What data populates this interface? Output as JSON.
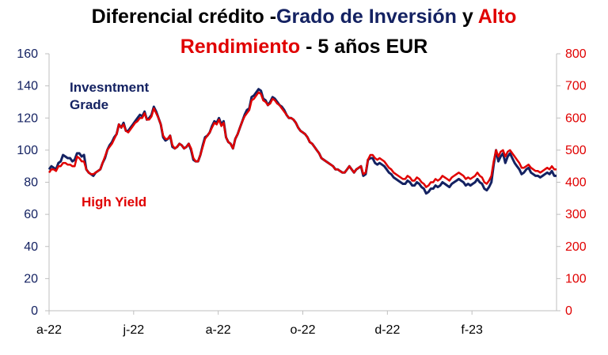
{
  "chart_data": {
    "type": "line",
    "title": {
      "part1": "Diferencial crédito -",
      "part2": "Grado de Inversión",
      "part3": " y ",
      "part4": "Alto",
      "part5": "Rendimiento",
      "part6": " - 5 años EUR"
    },
    "label_ig_line1": "Invesntment",
    "label_ig_line2": "Grade",
    "label_hy": "High Yield",
    "colors": {
      "investment_grade": "#142262",
      "high_yield": "#e00000",
      "axis": "#bfbfbf"
    },
    "x_ticks": [
      "a-22",
      "j-22",
      "a-22",
      "o-22",
      "d-22",
      "f-23"
    ],
    "y_left": {
      "min": 0,
      "max": 160,
      "ticks": [
        0,
        20,
        40,
        60,
        80,
        100,
        120,
        140,
        160
      ]
    },
    "y_right": {
      "min": 0,
      "max": 800,
      "ticks": [
        0,
        100,
        200,
        300,
        400,
        500,
        600,
        700,
        800
      ]
    },
    "grid": false,
    "series": [
      {
        "axis": "left",
        "values": [
          88,
          90,
          89,
          88,
          92,
          93,
          97,
          96,
          95,
          95,
          93,
          94,
          98,
          98,
          96,
          97,
          88,
          86,
          85,
          84,
          86,
          87,
          88,
          92,
          95,
          100,
          103,
          105,
          108,
          110,
          116,
          114,
          117,
          112,
          112,
          114,
          116,
          118,
          120,
          122,
          121,
          124,
          119,
          120,
          122,
          127,
          124,
          120,
          116,
          108,
          106,
          107,
          109,
          102,
          101,
          102,
          104,
          103,
          101,
          102,
          104,
          100,
          94,
          93,
          93,
          97,
          103,
          108,
          109,
          111,
          115,
          118,
          117,
          120,
          116,
          118,
          108,
          105,
          104,
          101,
          107,
          110,
          114,
          118,
          122,
          125,
          126,
          133,
          134,
          136,
          138,
          137,
          132,
          131,
          128,
          130,
          133,
          132,
          130,
          128,
          127,
          125,
          122,
          120,
          120,
          119,
          117,
          114,
          112,
          111,
          110,
          108,
          105,
          104,
          102,
          100,
          98,
          95,
          94,
          93,
          92,
          91,
          90,
          88,
          88,
          87,
          86,
          86,
          88,
          90,
          88,
          86,
          88,
          89,
          90,
          84,
          85,
          94,
          95,
          95,
          92,
          91,
          92,
          91,
          90,
          88,
          86,
          85,
          83,
          82,
          81,
          80,
          79,
          79,
          81,
          80,
          78,
          78,
          80,
          79,
          77,
          76,
          73,
          74,
          76,
          76,
          78,
          77,
          78,
          80,
          79,
          78,
          77,
          79,
          80,
          81,
          82,
          81,
          80,
          78,
          79,
          78,
          79,
          80,
          82,
          80,
          79,
          76,
          75,
          77,
          80,
          91,
          100,
          93,
          96,
          98,
          92,
          96,
          98,
          95,
          92,
          90,
          88,
          85,
          86,
          88,
          89,
          86,
          85,
          84,
          84,
          83,
          84,
          85,
          86,
          85,
          87,
          84,
          84
        ]
      },
      {
        "axis": "right",
        "values": [
          430,
          440,
          440,
          435,
          450,
          450,
          460,
          460,
          455,
          455,
          450,
          450,
          480,
          475,
          465,
          465,
          440,
          430,
          425,
          425,
          430,
          435,
          440,
          460,
          480,
          500,
          510,
          520,
          535,
          550,
          580,
          570,
          580,
          560,
          555,
          565,
          575,
          585,
          590,
          600,
          600,
          615,
          595,
          595,
          605,
          630,
          615,
          600,
          580,
          545,
          535,
          535,
          545,
          515,
          505,
          510,
          520,
          515,
          505,
          510,
          520,
          505,
          475,
          465,
          465,
          485,
          510,
          535,
          545,
          555,
          570,
          585,
          580,
          595,
          575,
          585,
          540,
          525,
          520,
          505,
          535,
          550,
          570,
          590,
          605,
          615,
          625,
          655,
          660,
          670,
          680,
          675,
          655,
          650,
          640,
          645,
          660,
          655,
          645,
          640,
          630,
          620,
          610,
          600,
          600,
          595,
          585,
          570,
          560,
          555,
          550,
          540,
          525,
          520,
          510,
          500,
          490,
          475,
          470,
          465,
          460,
          455,
          450,
          440,
          440,
          435,
          430,
          430,
          440,
          450,
          440,
          430,
          440,
          445,
          450,
          425,
          430,
          470,
          485,
          485,
          475,
          470,
          475,
          470,
          465,
          455,
          445,
          440,
          430,
          425,
          420,
          415,
          410,
          410,
          420,
          415,
          405,
          405,
          415,
          410,
          400,
          395,
          385,
          390,
          400,
          400,
          410,
          405,
          410,
          420,
          415,
          410,
          405,
          415,
          420,
          425,
          430,
          425,
          420,
          410,
          415,
          410,
          415,
          420,
          430,
          420,
          415,
          400,
          395,
          405,
          420,
          465,
          500,
          480,
          495,
          500,
          480,
          495,
          500,
          490,
          480,
          470,
          460,
          445,
          445,
          450,
          455,
          445,
          440,
          435,
          435,
          430,
          435,
          440,
          445,
          440,
          450,
          440,
          440
        ]
      }
    ]
  }
}
